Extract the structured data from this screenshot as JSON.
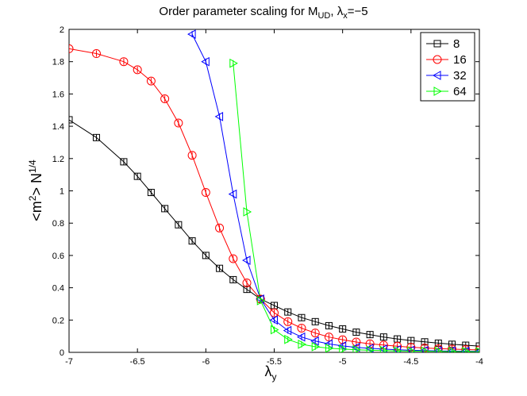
{
  "chart_data": {
    "type": "line",
    "title": {
      "main": "Order parameter scaling for M",
      "main_sub": "UD",
      "sep": ", ",
      "lambda": "λ",
      "lambda_sub": "x",
      "tail": "=−5"
    },
    "xlabel": {
      "symbol": "λ",
      "sub": "y"
    },
    "ylabel": {
      "base": "<m",
      "sup1": "2",
      "mid": "> N",
      "sup2": "1/4"
    },
    "xlim": [
      -7,
      -4
    ],
    "ylim": [
      0,
      2
    ],
    "xticks": [
      -7,
      -6.5,
      -6,
      -5.5,
      -5,
      -4.5,
      -4
    ],
    "xtick_labels": [
      "-7",
      "-6.5",
      "-6",
      "-5.5",
      "-5",
      "-4.5",
      "-4"
    ],
    "yticks": [
      0,
      0.2,
      0.4,
      0.6,
      0.8,
      1,
      1.2,
      1.4,
      1.6,
      1.8,
      2
    ],
    "ytick_labels": [
      "0",
      "0.2",
      "0.4",
      "0.6",
      "0.8",
      "1",
      "1.2",
      "1.4",
      "1.6",
      "1.8",
      "2"
    ],
    "grid": false,
    "legend_position": "top-right",
    "series": [
      {
        "name": "8",
        "color": "#000000",
        "marker": "square",
        "x": [
          -7.0,
          -6.8,
          -6.6,
          -6.5,
          -6.4,
          -6.3,
          -6.2,
          -6.1,
          -6.0,
          -5.9,
          -5.8,
          -5.7,
          -5.6,
          -5.5,
          -5.4,
          -5.3,
          -5.2,
          -5.1,
          -5.0,
          -4.9,
          -4.8,
          -4.7,
          -4.6,
          -4.5,
          -4.4,
          -4.3,
          -4.2,
          -4.1,
          -4.0
        ],
        "values": [
          1.44,
          1.33,
          1.18,
          1.09,
          0.99,
          0.89,
          0.79,
          0.69,
          0.6,
          0.52,
          0.45,
          0.39,
          0.33,
          0.29,
          0.25,
          0.215,
          0.19,
          0.165,
          0.145,
          0.125,
          0.11,
          0.095,
          0.083,
          0.073,
          0.065,
          0.057,
          0.05,
          0.044,
          0.039
        ]
      },
      {
        "name": "16",
        "color": "#ff0000",
        "marker": "circle",
        "x": [
          -7.0,
          -6.8,
          -6.6,
          -6.5,
          -6.4,
          -6.3,
          -6.2,
          -6.1,
          -6.0,
          -5.9,
          -5.8,
          -5.7,
          -5.6,
          -5.5,
          -5.4,
          -5.3,
          -5.2,
          -5.1,
          -5.0,
          -4.9,
          -4.8,
          -4.7,
          -4.6,
          -4.5,
          -4.4,
          -4.3,
          -4.2,
          -4.1,
          -4.0
        ],
        "values": [
          1.88,
          1.85,
          1.8,
          1.75,
          1.68,
          1.57,
          1.42,
          1.22,
          0.99,
          0.77,
          0.58,
          0.43,
          0.33,
          0.245,
          0.19,
          0.15,
          0.12,
          0.095,
          0.078,
          0.064,
          0.053,
          0.045,
          0.038,
          0.032,
          0.027,
          0.023,
          0.02,
          0.017,
          0.015
        ]
      },
      {
        "name": "32",
        "color": "#0000ff",
        "marker": "triangle-left",
        "x": [
          -6.1,
          -6.0,
          -5.9,
          -5.8,
          -5.7,
          -5.6,
          -5.5,
          -5.4,
          -5.3,
          -5.2,
          -5.1,
          -5.0,
          -4.9,
          -4.8,
          -4.7,
          -4.6,
          -4.5,
          -4.4,
          -4.3,
          -4.2,
          -4.1,
          -4.0
        ],
        "values": [
          1.97,
          1.8,
          1.46,
          0.98,
          0.57,
          0.33,
          0.2,
          0.135,
          0.095,
          0.07,
          0.052,
          0.04,
          0.031,
          0.025,
          0.02,
          0.016,
          0.013,
          0.011,
          0.009,
          0.008,
          0.007,
          0.006
        ]
      },
      {
        "name": "64",
        "color": "#00ff00",
        "marker": "triangle-right",
        "x": [
          -5.8,
          -5.7,
          -5.6,
          -5.5,
          -5.4,
          -5.3,
          -5.2,
          -5.1,
          -5.0,
          -4.9,
          -4.8,
          -4.7,
          -4.6,
          -4.5,
          -4.4,
          -4.3,
          -4.2,
          -4.1,
          -4.0
        ],
        "values": [
          1.79,
          0.87,
          0.32,
          0.14,
          0.08,
          0.05,
          0.035,
          0.026,
          0.02,
          0.016,
          0.013,
          0.011,
          0.009,
          0.008,
          0.007,
          0.006,
          0.005,
          0.005,
          0.004
        ]
      }
    ]
  }
}
